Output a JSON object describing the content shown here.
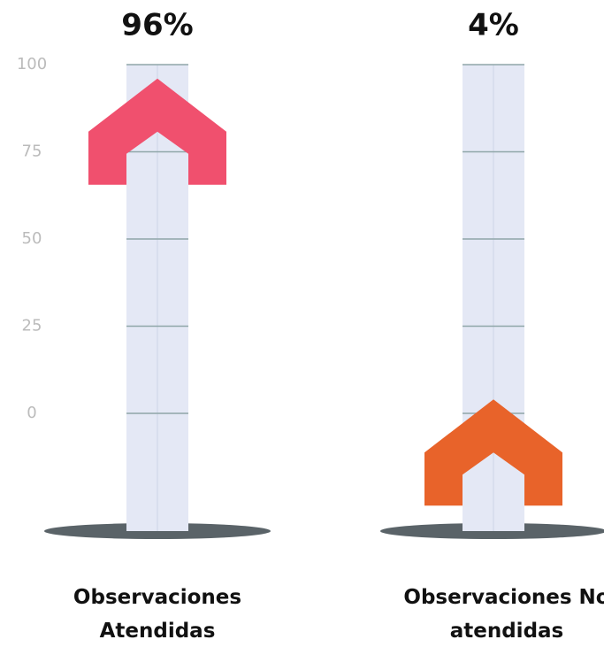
{
  "chart_data": {
    "type": "arrow-gauge",
    "categories": [
      "Observaciones Atendidas",
      "Observaciones No atendidas"
    ],
    "values": [
      96,
      4
    ],
    "value_labels": [
      "96%",
      "4%"
    ],
    "colors": [
      "#f0506e",
      "#e8632a"
    ],
    "ylim": [
      0,
      100
    ],
    "yticks": [
      0,
      25,
      50,
      75,
      100
    ],
    "grid": true
  }
}
